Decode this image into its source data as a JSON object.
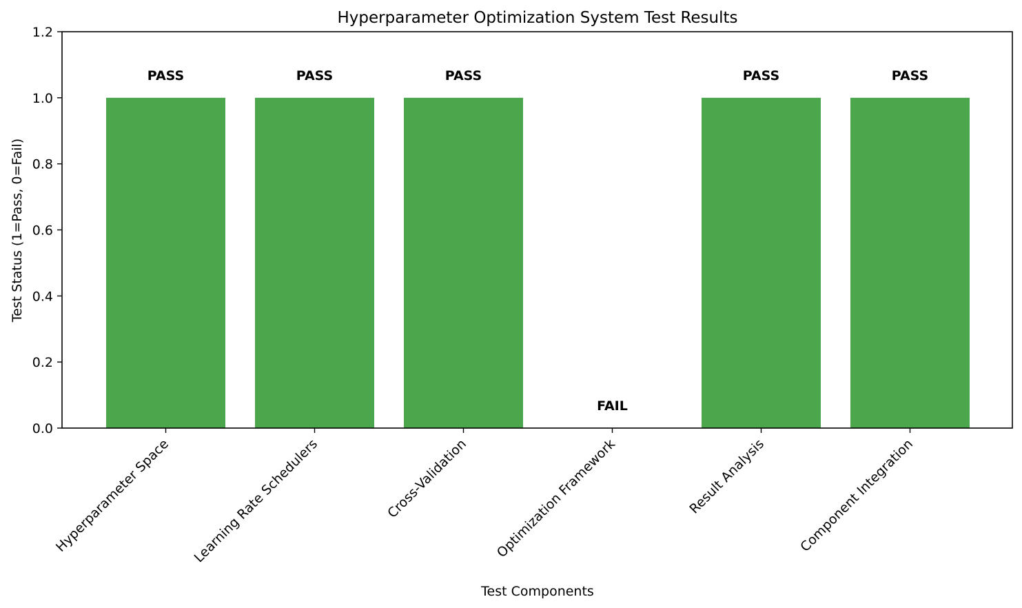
{
  "chart_data": {
    "type": "bar",
    "title": "Hyperparameter Optimization System Test Results",
    "xlabel": "Test Components",
    "ylabel": "Test Status (1=Pass, 0=Fail)",
    "categories": [
      "Hyperparameter Space",
      "Learning Rate Schedulers",
      "Cross-Validation",
      "Optimization Framework",
      "Result Analysis",
      "Component Integration"
    ],
    "values": [
      1,
      1,
      1,
      0,
      1,
      1
    ],
    "bar_labels": [
      "PASS",
      "PASS",
      "PASS",
      "FAIL",
      "PASS",
      "PASS"
    ],
    "ylim": [
      0,
      1.2
    ],
    "yticks": [
      0.0,
      0.2,
      0.4,
      0.6,
      0.8,
      1.0,
      1.2
    ],
    "ytick_labels": [
      "0.0",
      "0.2",
      "0.4",
      "0.6",
      "0.8",
      "1.0",
      "1.2"
    ],
    "grid": false,
    "colors": {
      "pass": "#4ca64c",
      "fail": "#d62728"
    }
  }
}
